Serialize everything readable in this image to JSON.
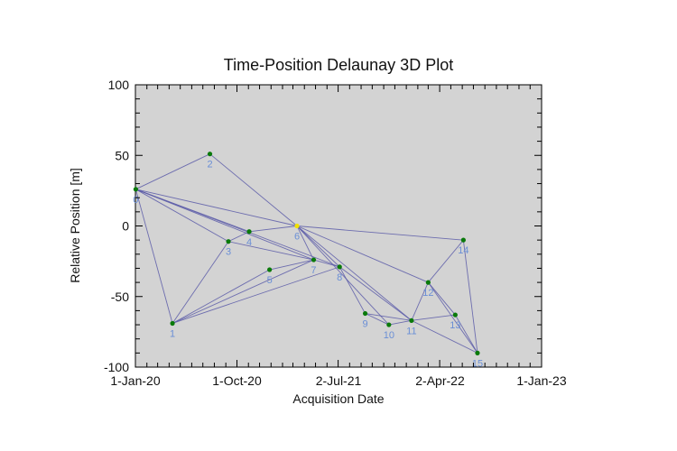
{
  "chart_data": {
    "type": "scatter",
    "title": "Time-Position Delaunay 3D Plot",
    "xlabel": "Acquisition Date",
    "ylabel": "Relative Position [m]",
    "xlim": [
      "2020-01-01",
      "2023-01-01"
    ],
    "ylim": [
      -100,
      100
    ],
    "x_ticks": [
      "1-Jan-20",
      "1-Oct-20",
      "2-Jul-21",
      "2-Apr-22",
      "1-Jan-23"
    ],
    "x_tick_dates": [
      "2020-01-01",
      "2020-10-01",
      "2021-07-02",
      "2022-04-02",
      "2023-01-01"
    ],
    "y_ticks": [
      "100",
      "50",
      "0",
      "-50",
      "-100"
    ],
    "y_tick_values": [
      100,
      50,
      0,
      -50,
      -100
    ],
    "grid": false,
    "plot_background": "#d3d3d3",
    "point_color": "#0a7a0a",
    "highlight_color": "#f0e000",
    "edge_color": "#5a5aa8",
    "label_color": "#6a8fd6",
    "points": [
      {
        "id": "0",
        "date": "2020-01-02",
        "y": 26
      },
      {
        "id": "1",
        "date": "2020-04-10",
        "y": -69
      },
      {
        "id": "2",
        "date": "2020-07-20",
        "y": 51
      },
      {
        "id": "3",
        "date": "2020-09-08",
        "y": -11
      },
      {
        "id": "4",
        "date": "2020-11-03",
        "y": -4
      },
      {
        "id": "5",
        "date": "2020-12-28",
        "y": -31
      },
      {
        "id": "6",
        "date": "2021-03-12",
        "y": 0
      },
      {
        "id": "7",
        "date": "2021-04-26",
        "y": -24
      },
      {
        "id": "8",
        "date": "2021-07-05",
        "y": -29
      },
      {
        "id": "9",
        "date": "2021-09-12",
        "y": -62
      },
      {
        "id": "10",
        "date": "2021-11-15",
        "y": -70
      },
      {
        "id": "11",
        "date": "2022-01-15",
        "y": -67
      },
      {
        "id": "12",
        "date": "2022-03-01",
        "y": -40
      },
      {
        "id": "13",
        "date": "2022-05-13",
        "y": -63
      },
      {
        "id": "14",
        "date": "2022-06-04",
        "y": -10
      },
      {
        "id": "15",
        "date": "2022-07-12",
        "y": -90
      }
    ],
    "highlight_point": "6",
    "edges": [
      [
        0,
        2
      ],
      [
        2,
        6
      ],
      [
        0,
        6
      ],
      [
        0,
        1
      ],
      [
        0,
        3
      ],
      [
        0,
        4
      ],
      [
        0,
        7
      ],
      [
        0,
        8
      ],
      [
        3,
        4
      ],
      [
        4,
        6
      ],
      [
        3,
        1
      ],
      [
        1,
        5
      ],
      [
        1,
        7
      ],
      [
        1,
        8
      ],
      [
        5,
        7
      ],
      [
        3,
        7
      ],
      [
        6,
        7
      ],
      [
        6,
        8
      ],
      [
        7,
        8
      ],
      [
        6,
        14
      ],
      [
        6,
        11
      ],
      [
        6,
        10
      ],
      [
        8,
        9
      ],
      [
        8,
        11
      ],
      [
        9,
        10
      ],
      [
        10,
        11
      ],
      [
        9,
        11
      ],
      [
        11,
        12
      ],
      [
        12,
        14
      ],
      [
        11,
        13
      ],
      [
        12,
        13
      ],
      [
        13,
        15
      ],
      [
        14,
        15
      ],
      [
        11,
        15
      ],
      [
        12,
        15
      ],
      [
        6,
        12
      ]
    ]
  }
}
